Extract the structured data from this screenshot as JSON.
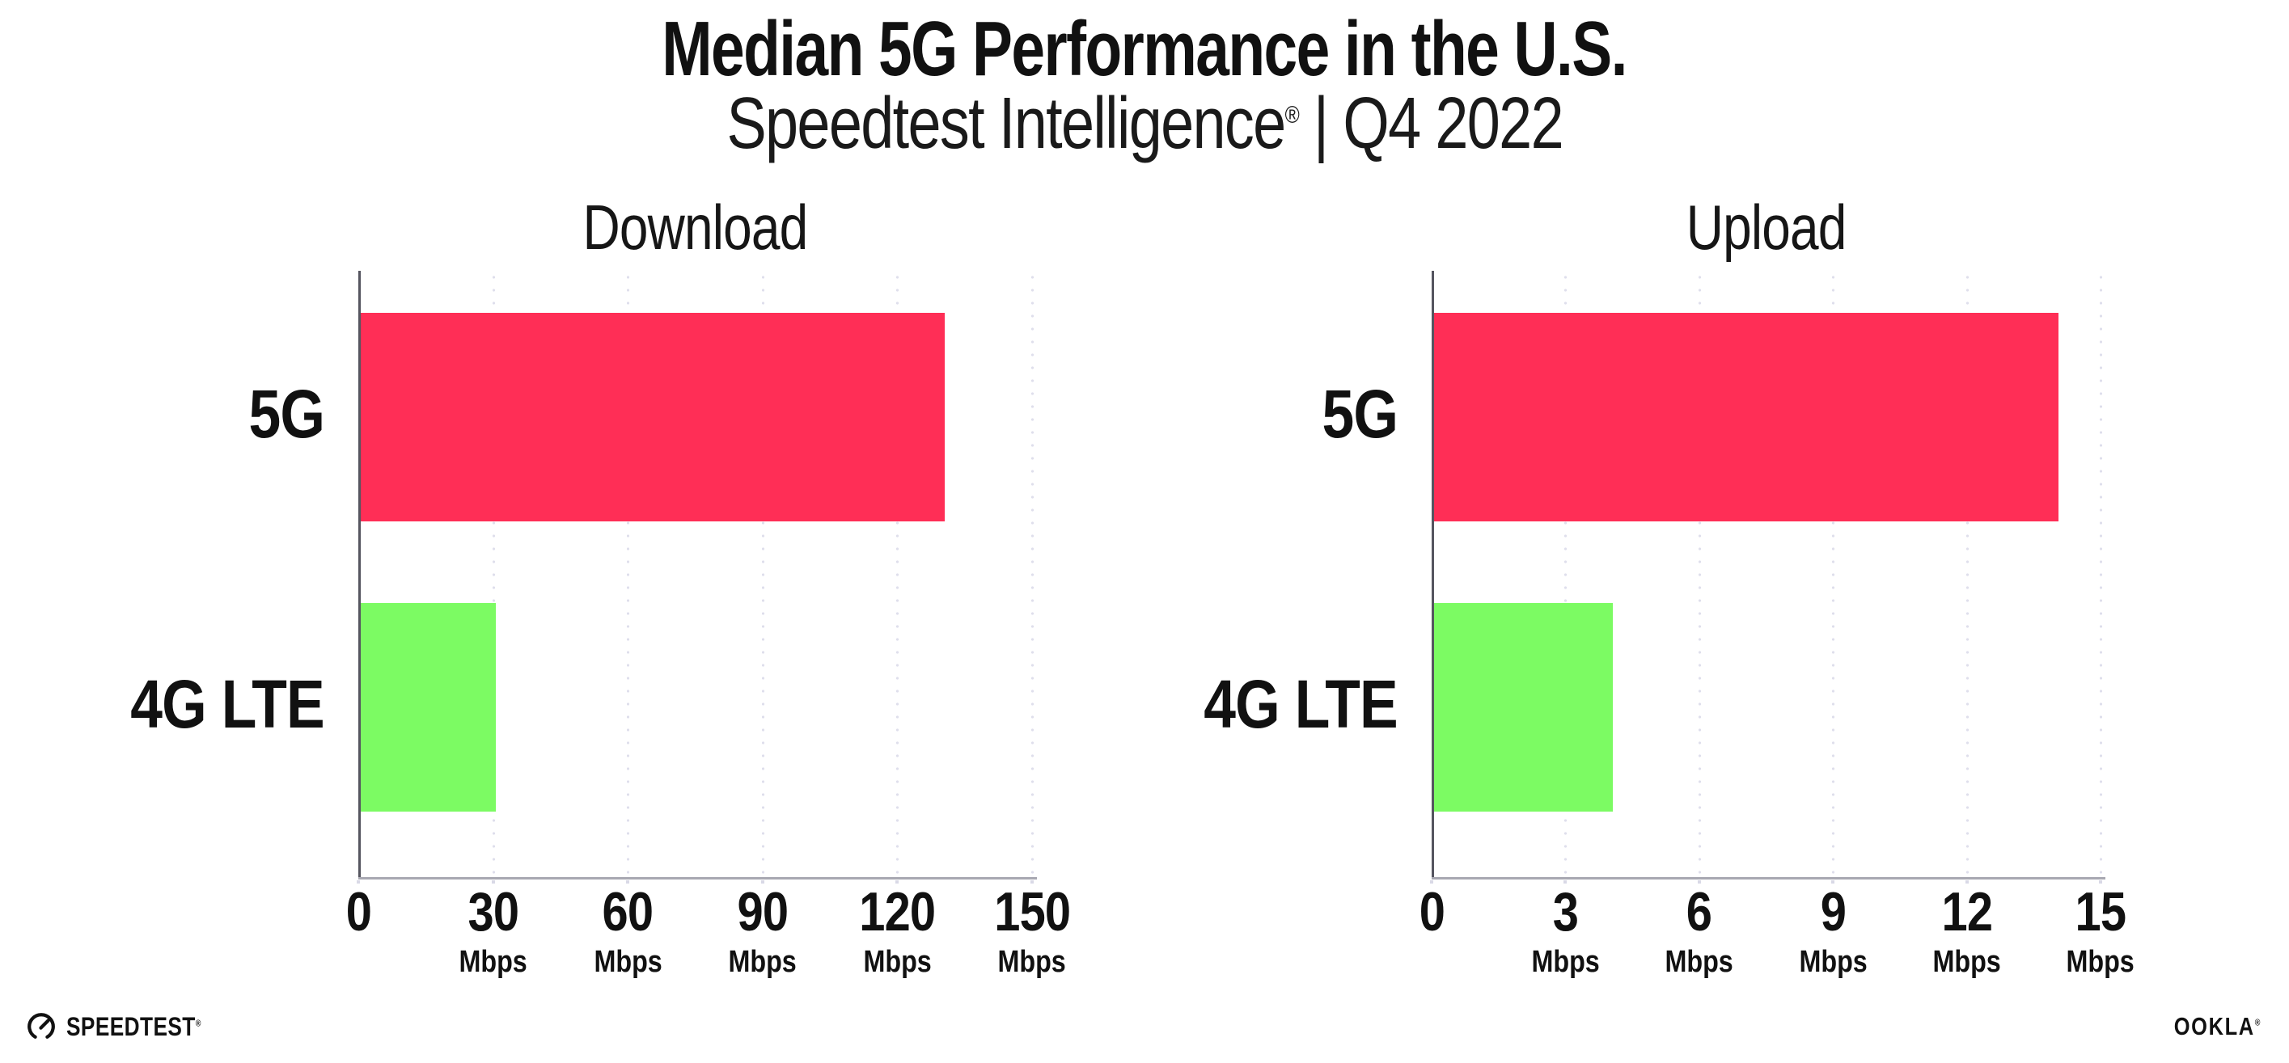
{
  "header": {
    "title": "Median 5G Performance in the U.S.",
    "subtitle_brand": "Speedtest Intelligence",
    "subtitle_reg": "®",
    "subtitle_rest": " | Q4 2022"
  },
  "chart_data": [
    {
      "type": "bar",
      "orientation": "horizontal",
      "title": "Download",
      "categories": [
        "5G",
        "4G LTE"
      ],
      "values": [
        130,
        30
      ],
      "value_unit": "Mbps",
      "xlim": [
        0,
        150
      ],
      "xticks": [
        0,
        30,
        60,
        90,
        120,
        150
      ],
      "xtick_unit": "Mbps",
      "series_colors": [
        "#FF2E56",
        "#7CFB63"
      ],
      "grid": "vertical-dotted",
      "legend": "none"
    },
    {
      "type": "bar",
      "orientation": "horizontal",
      "title": "Upload",
      "categories": [
        "5G",
        "4G LTE"
      ],
      "values": [
        14,
        4
      ],
      "value_unit": "Mbps",
      "xlim": [
        0,
        15
      ],
      "xticks": [
        0,
        3,
        6,
        9,
        12,
        15
      ],
      "xtick_unit": "Mbps",
      "series_colors": [
        "#FF2E56",
        "#7CFB63"
      ],
      "grid": "vertical-dotted",
      "legend": "none"
    }
  ],
  "footer": {
    "speedtest": "SPEEDTEST",
    "speedtest_reg": "®",
    "ookla": "OOKLA",
    "ookla_reg": "®"
  },
  "colors": {
    "bar_5g": "#FF2E56",
    "bar_4g_lte": "#7CFB63",
    "gridline": "#DFDFEC",
    "y_axis": "#55555F",
    "x_axis": "#A8A8B2",
    "text": "#111111",
    "background": "#FFFFFF"
  }
}
